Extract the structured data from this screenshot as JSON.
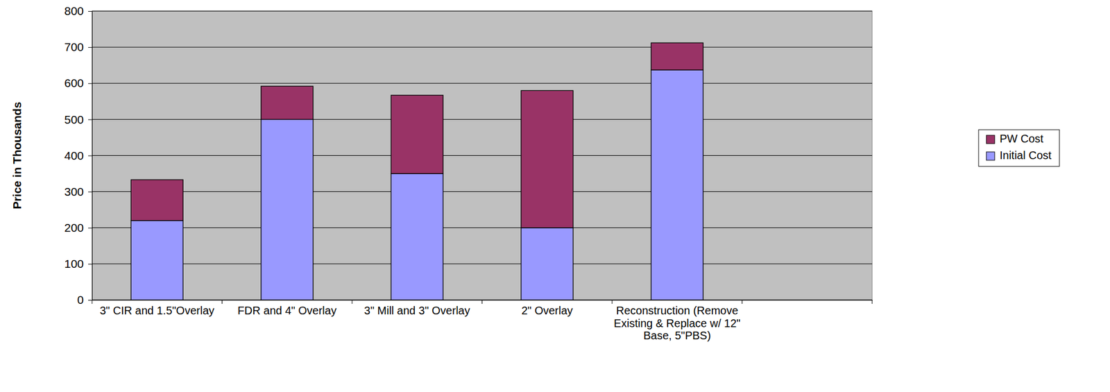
{
  "chart_data": {
    "type": "bar",
    "stacked": true,
    "y_label": "Price in Thousands",
    "categories": [
      "3\" CIR and 1.5\"Overlay",
      "FDR and 4\" Overlay",
      "3\" Mill and 3\" Overlay",
      "2\" Overlay",
      "Reconstruction (Remove Existing & Replace w/ 12\" Base, 5\"PBS)",
      null
    ],
    "series": [
      {
        "name": "Initial Cost",
        "color": "#9999ff",
        "values": [
          220,
          500,
          350,
          200,
          637,
          null
        ]
      },
      {
        "name": "PW Cost",
        "color": "#993366",
        "values": [
          113,
          92,
          217,
          380,
          75,
          null
        ]
      }
    ],
    "ylim": [
      0,
      800
    ],
    "yticks": [
      0,
      100,
      200,
      300,
      400,
      500,
      600,
      700,
      800
    ],
    "grid": true,
    "legend": "right"
  }
}
